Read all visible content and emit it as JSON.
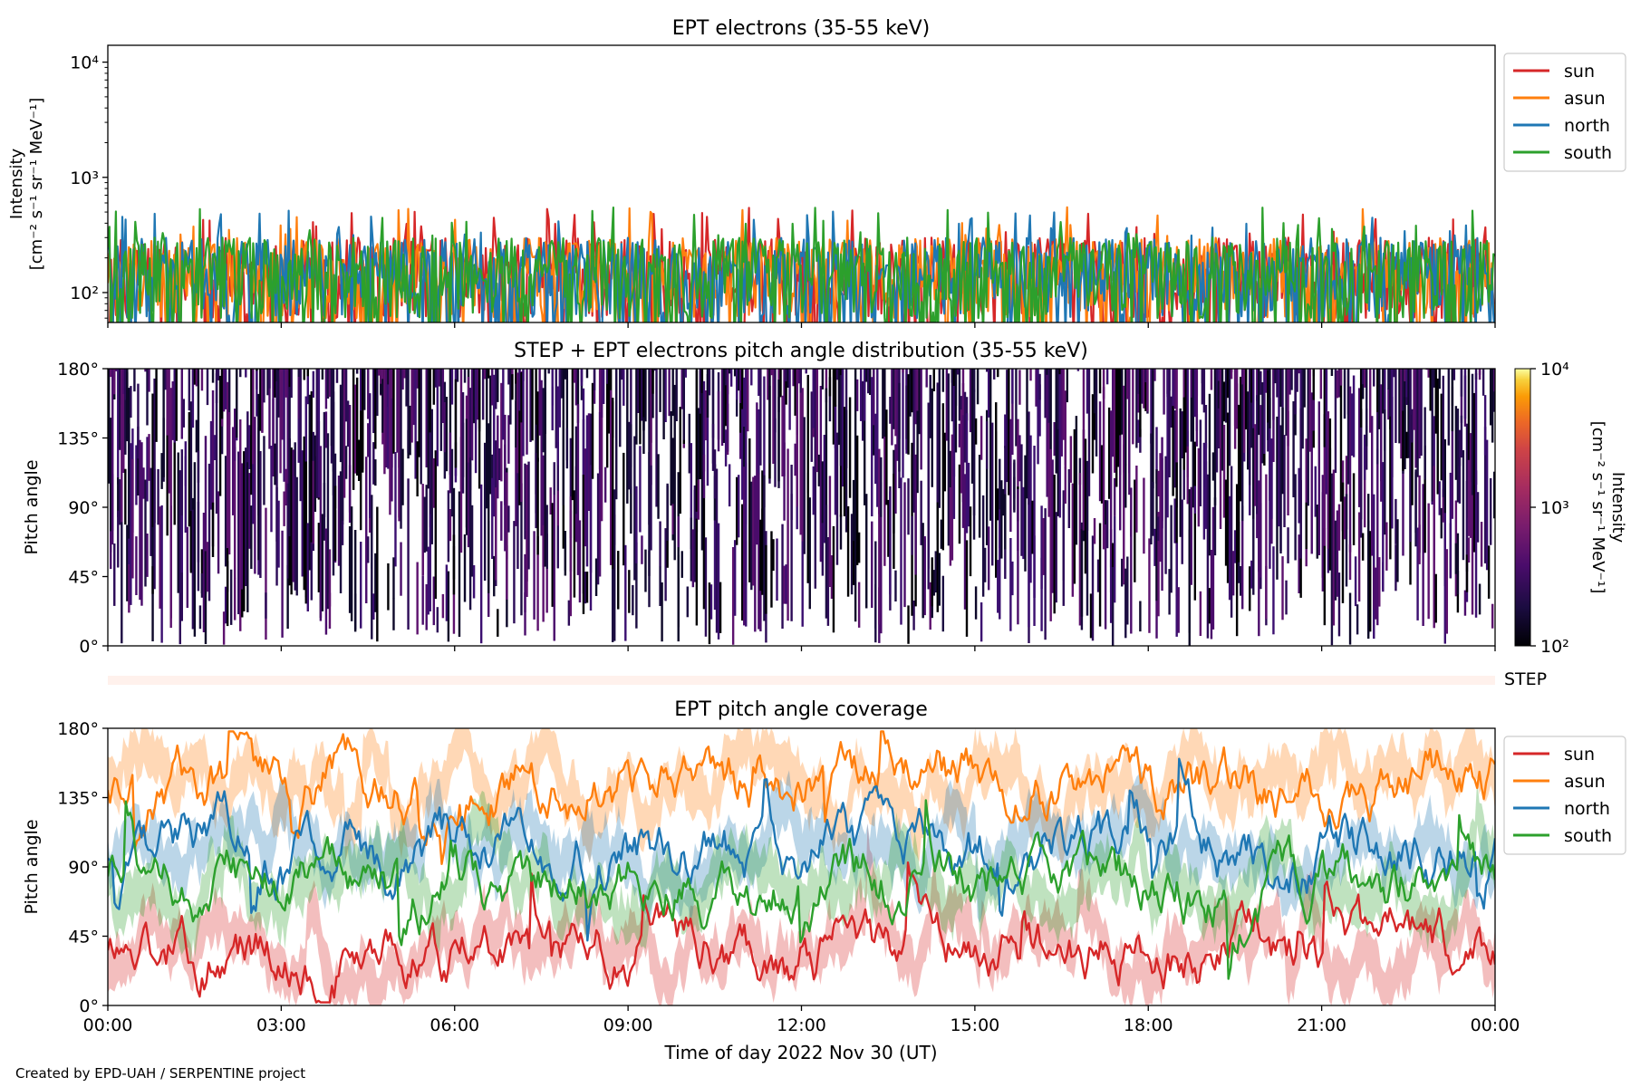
{
  "footer": {
    "credit": "Created by EPD-UAH / SERPENTINE project"
  },
  "colors": {
    "sun": "#d62728",
    "asun": "#ff7f0e",
    "north": "#1f77b4",
    "south": "#2ca02c",
    "step_strip": "#fff1ec"
  },
  "chart_data": [
    {
      "type": "line",
      "title": "EPT electrons (35-55 keV)",
      "ylabel_lines": [
        "Intensity",
        "[cm⁻² s⁻¹ sr⁻¹ MeV⁻¹]"
      ],
      "yscale": "log",
      "ylim": [
        55,
        14000
      ],
      "yticks": [
        {
          "value": 100,
          "label": "10²"
        },
        {
          "value": 1000,
          "label": "10³"
        },
        {
          "value": 10000,
          "label": "10⁴"
        }
      ],
      "x_range_hours": [
        0,
        24
      ],
      "xtick_hours": [
        0,
        3,
        6,
        9,
        12,
        15,
        18,
        21,
        24
      ],
      "legend_placement": "outside-right-top",
      "typical_range": [
        60,
        300
      ],
      "series": [
        {
          "name": "sun",
          "color": "#d62728"
        },
        {
          "name": "asun",
          "color": "#ff7f0e"
        },
        {
          "name": "north",
          "color": "#1f77b4"
        },
        {
          "name": "south",
          "color": "#2ca02c"
        }
      ]
    },
    {
      "type": "heatmap",
      "title": "STEP + EPT electrons pitch angle distribution (35-55 keV)",
      "ylabel": "Pitch angle",
      "ylim": [
        0,
        180
      ],
      "yticks": [
        {
          "value": 0,
          "label": "0°"
        },
        {
          "value": 45,
          "label": "45°"
        },
        {
          "value": 90,
          "label": "90°"
        },
        {
          "value": 135,
          "label": "135°"
        },
        {
          "value": 180,
          "label": "180°"
        }
      ],
      "x_range_hours": [
        0,
        24
      ],
      "colorbar": {
        "scale": "log",
        "range": [
          100,
          10000
        ],
        "ticks": [
          {
            "value": 100,
            "label": "10²"
          },
          {
            "value": 1000,
            "label": "10³"
          },
          {
            "value": 10000,
            "label": "10⁴"
          }
        ],
        "label_lines": [
          "Intensity",
          "[cm⁻² s⁻¹ sr⁻¹ MeV⁻¹]"
        ],
        "colormap": "inferno"
      },
      "step_strip_label": "STEP"
    },
    {
      "type": "line",
      "title": "EPT pitch angle coverage",
      "ylabel": "Pitch angle",
      "xlabel": "Time of day 2022 Nov 30 (UT)",
      "ylim": [
        0,
        180
      ],
      "yticks": [
        {
          "value": 0,
          "label": "0°"
        },
        {
          "value": 45,
          "label": "45°"
        },
        {
          "value": 90,
          "label": "90°"
        },
        {
          "value": 135,
          "label": "135°"
        },
        {
          "value": 180,
          "label": "180°"
        }
      ],
      "x_range_hours": [
        0,
        24
      ],
      "xtick_labels": [
        "00:00",
        "03:00",
        "06:00",
        "09:00",
        "12:00",
        "15:00",
        "18:00",
        "21:00",
        "00:00"
      ],
      "legend_placement": "outside-right-top",
      "series": [
        {
          "name": "sun",
          "color": "#d62728",
          "typical_pitch": 35
        },
        {
          "name": "asun",
          "color": "#ff7f0e",
          "typical_pitch": 145
        },
        {
          "name": "north",
          "color": "#1f77b4",
          "typical_pitch": 100
        },
        {
          "name": "south",
          "color": "#2ca02c",
          "typical_pitch": 80
        }
      ]
    }
  ]
}
